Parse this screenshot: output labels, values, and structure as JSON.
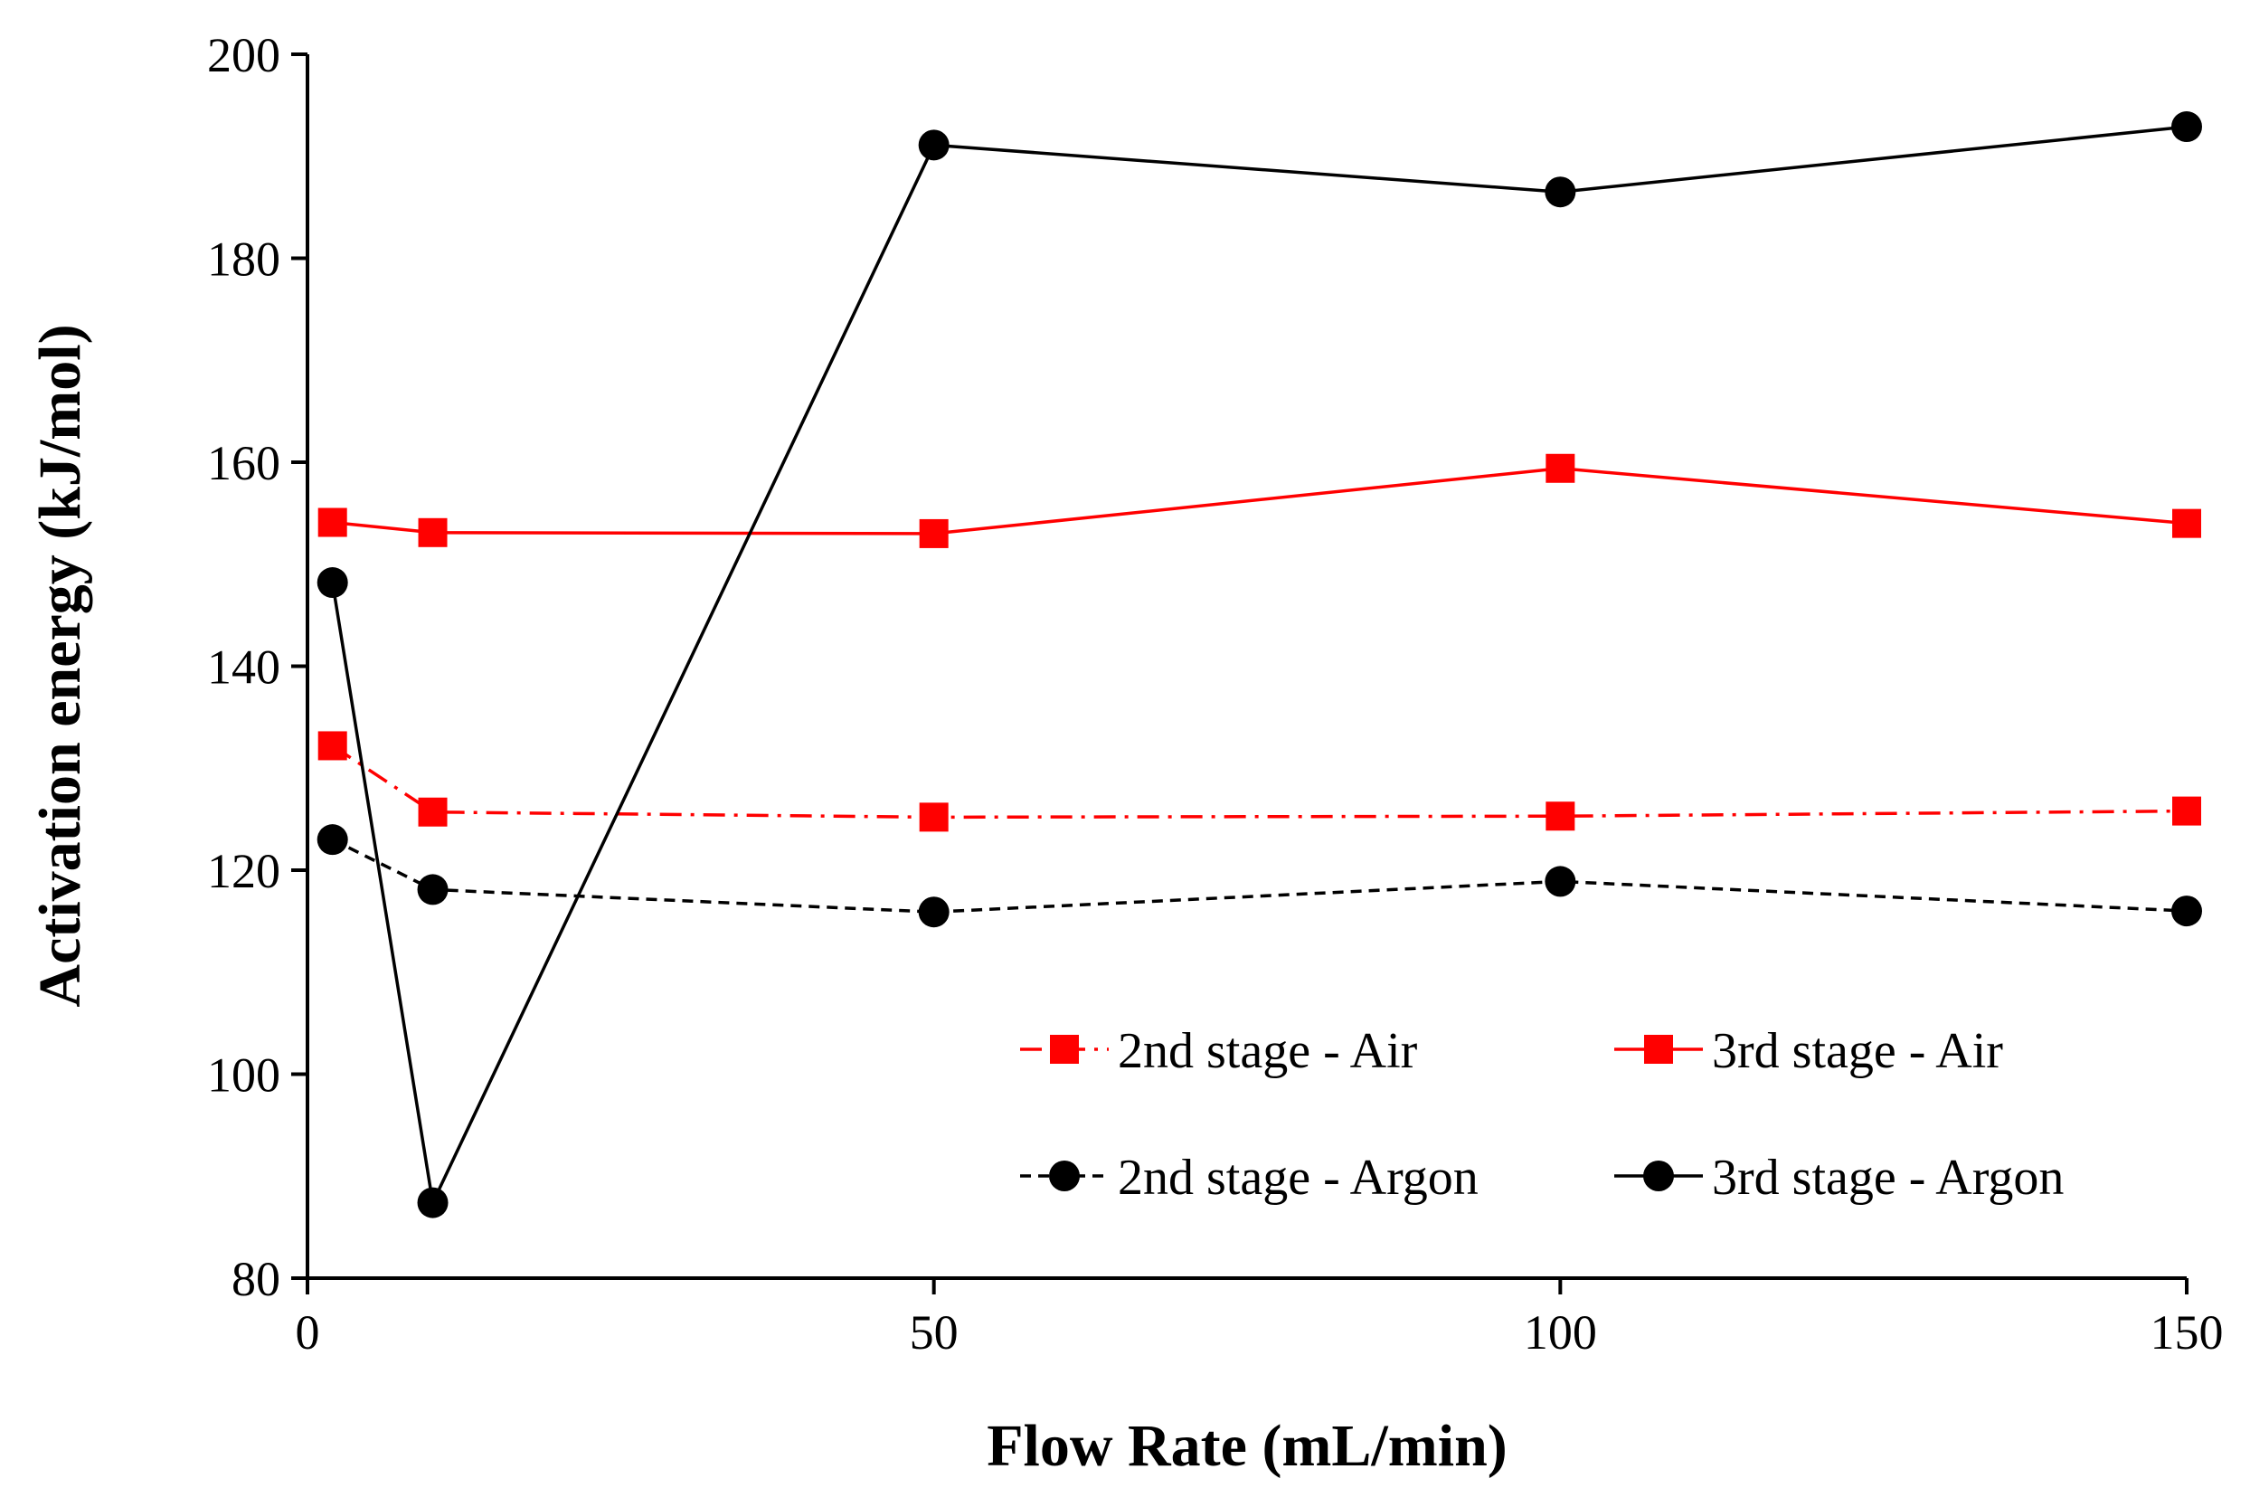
{
  "chart_data": {
    "type": "line",
    "xlabel": "Flow Rate (mL/min)",
    "ylabel": "Activation energy (kJ/mol)",
    "xlim": [
      0,
      150
    ],
    "ylim": [
      80,
      200
    ],
    "xticks": [
      0,
      50,
      100,
      150
    ],
    "yticks": [
      80,
      100,
      120,
      140,
      160,
      180,
      200
    ],
    "grid": false,
    "legend_position": "bottom-right",
    "series": [
      {
        "name": "2nd stage - Air",
        "color": "#ff0000",
        "marker": "square",
        "line": "dashdot",
        "x": [
          2,
          10,
          50,
          100,
          150
        ],
        "y": [
          132.2,
          125.7,
          125.2,
          125.3,
          125.8
        ]
      },
      {
        "name": "3rd stage - Air",
        "color": "#ff0000",
        "marker": "square",
        "line": "solid",
        "x": [
          2,
          10,
          50,
          100,
          150
        ],
        "y": [
          154.1,
          153.1,
          153.0,
          159.4,
          154.0
        ]
      },
      {
        "name": "2nd stage - Argon",
        "color": "#000000",
        "marker": "circle",
        "line": "dashed",
        "x": [
          2,
          10,
          50,
          100,
          150
        ],
        "y": [
          123.0,
          118.1,
          115.9,
          118.9,
          116.0
        ]
      },
      {
        "name": "3rd stage - Argon",
        "color": "#000000",
        "marker": "circle",
        "line": "solid",
        "x": [
          2,
          10,
          50,
          100,
          150
        ],
        "y": [
          148.2,
          87.4,
          191.1,
          186.5,
          192.9
        ]
      }
    ]
  }
}
